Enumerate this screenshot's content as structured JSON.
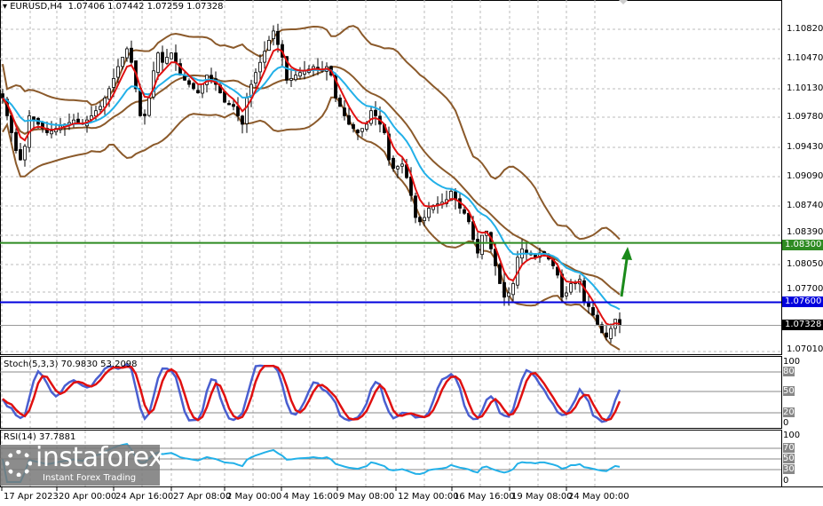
{
  "header": {
    "symbol": "EURUSD,H4",
    "ohlc": "1.07406 1.07442 1.07259 1.07328"
  },
  "price_axis": [
    "1.10820",
    "1.10470",
    "1.10130",
    "1.09780",
    "1.09430",
    "1.09090",
    "1.08740",
    "1.08390",
    "1.08050",
    "1.07700",
    "1.07010"
  ],
  "levels": {
    "resistance": {
      "label": "1.08300",
      "value": 1.083,
      "color": "#2e8b22"
    },
    "support": {
      "label": "1.07600",
      "value": 1.076,
      "color": "#0000dd"
    },
    "current": {
      "label": "1.07328",
      "value": 1.07328,
      "color": "#000000"
    }
  },
  "stoch": {
    "title": "Stoch(5,3,3) 70.9830 53.2098",
    "levels": [
      "100",
      "80",
      "50",
      "20",
      "0"
    ]
  },
  "rsi": {
    "title": "RSI(14) 37.7881",
    "levels": [
      "100",
      "70",
      "50",
      "30",
      "0"
    ]
  },
  "time_axis": [
    "17 Apr 2023",
    "20 Apr 00:00",
    "24 Apr 16:00",
    "27 Apr 08:00",
    "2 May 00:00",
    "4 May 16:00",
    "9 May 08:00",
    "12 May 00:00",
    "16 May 16:00",
    "19 May 08:00",
    "24 May 00:00"
  ],
  "logo": {
    "name": "instaforex",
    "tagline": "Instant Forex Trading"
  },
  "colors": {
    "fast_ma": "#e01010",
    "slow_ma": "#22b0e8",
    "bands": "#8b5a2b",
    "stoch_main": "#4a5fd0",
    "stoch_signal": "#e01010",
    "rsi": "#22b0e8",
    "arrow": "#1a8a1a"
  },
  "chart_data": {
    "type": "candlestick",
    "symbol": "EURUSD",
    "timeframe": "H4",
    "ylim": [
      1.0701,
      1.1082
    ],
    "closes": [
      1.1001,
      1.098,
      1.096,
      1.0939,
      1.0928,
      1.0944,
      1.098,
      1.0975,
      1.097,
      1.0965,
      1.096,
      1.0962,
      1.0965,
      1.0968,
      1.097,
      1.0972,
      1.0975,
      1.0972,
      1.097,
      1.0975,
      1.098,
      1.0986,
      1.0991,
      1.1001,
      1.1012,
      1.1024,
      1.1038,
      1.1049,
      1.1059,
      1.1043,
      1.1012,
      1.098,
      1.098,
      1.1001,
      1.1033,
      1.1054,
      1.1043,
      1.1049,
      1.1054,
      1.1043,
      1.1028,
      1.1022,
      1.1017,
      1.1012,
      1.1007,
      1.1017,
      1.1028,
      1.1022,
      1.1017,
      1.1007,
      1.0996,
      1.0993,
      1.0991,
      1.098,
      1.097,
      1.1001,
      1.1017,
      1.1031,
      1.1043,
      1.1056,
      1.1069,
      1.108,
      1.1064,
      1.1049,
      1.1022,
      1.1024,
      1.1028,
      1.1031,
      1.1033,
      1.1035,
      1.1038,
      1.1035,
      1.1033,
      1.1038,
      1.1028,
      1.1001,
      1.0991,
      1.098,
      1.097,
      1.0965,
      1.096,
      1.0965,
      1.097,
      1.0986,
      1.098,
      1.097,
      1.096,
      1.0928,
      1.0918,
      1.092,
      1.0923,
      1.0907,
      1.0886,
      1.086,
      1.0855,
      1.086,
      1.0871,
      1.0874,
      1.0876,
      1.0878,
      1.0881,
      1.0891,
      1.0881,
      1.0871,
      1.0865,
      1.0855,
      1.0834,
      1.0818,
      1.0839,
      1.0844,
      1.0823,
      1.0803,
      1.0782,
      1.0766,
      1.0771,
      1.0782,
      1.0813,
      1.0823,
      1.0818,
      1.0818,
      1.0813,
      1.0818,
      1.0818,
      1.0811,
      1.0803,
      1.0792,
      1.0766,
      1.0771,
      1.0782,
      1.0782,
      1.0787,
      1.0761,
      1.0755,
      1.0745,
      1.0734,
      1.0724,
      1.0719,
      1.0729,
      1.074,
      1.07328
    ]
  }
}
